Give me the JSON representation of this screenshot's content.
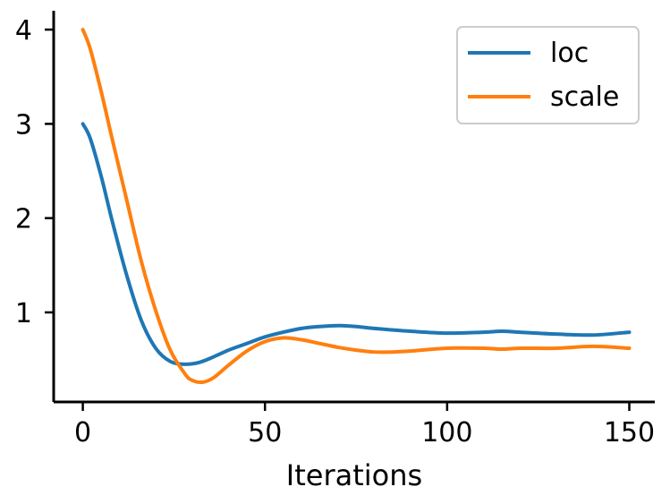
{
  "chart_data": {
    "type": "line",
    "title": "",
    "xlabel": "Iterations",
    "ylabel": "",
    "xlim": [
      -8,
      157
    ],
    "ylim": [
      0.05,
      4.2
    ],
    "xticks": [
      0,
      50,
      100,
      150
    ],
    "yticks": [
      1,
      2,
      3,
      4
    ],
    "x_tick_labels": [
      "0",
      "50",
      "100",
      "150"
    ],
    "y_tick_labels": [
      "1",
      "2",
      "3",
      "4"
    ],
    "grid": false,
    "legend_position": "top-right",
    "series": [
      {
        "name": "loc",
        "color": "#1f77b4",
        "x": [
          0,
          2,
          5,
          8,
          12,
          16,
          20,
          24,
          28,
          32,
          36,
          40,
          45,
          50,
          55,
          60,
          65,
          70,
          75,
          80,
          90,
          100,
          110,
          115,
          120,
          130,
          140,
          150
        ],
        "y": [
          3.0,
          2.85,
          2.45,
          1.98,
          1.4,
          0.92,
          0.62,
          0.48,
          0.45,
          0.47,
          0.53,
          0.6,
          0.67,
          0.74,
          0.79,
          0.83,
          0.85,
          0.86,
          0.85,
          0.83,
          0.8,
          0.78,
          0.79,
          0.8,
          0.79,
          0.77,
          0.76,
          0.79
        ]
      },
      {
        "name": "scale",
        "color": "#ff7f0e",
        "x": [
          0,
          2,
          5,
          8,
          12,
          16,
          20,
          24,
          28,
          30,
          33,
          36,
          40,
          45,
          50,
          55,
          60,
          65,
          70,
          75,
          80,
          85,
          90,
          100,
          110,
          115,
          120,
          130,
          140,
          150
        ],
        "y": [
          4.0,
          3.8,
          3.35,
          2.85,
          2.2,
          1.55,
          1.02,
          0.6,
          0.35,
          0.28,
          0.26,
          0.31,
          0.44,
          0.59,
          0.69,
          0.73,
          0.71,
          0.67,
          0.63,
          0.6,
          0.58,
          0.58,
          0.59,
          0.62,
          0.62,
          0.61,
          0.62,
          0.62,
          0.64,
          0.62
        ]
      }
    ]
  }
}
